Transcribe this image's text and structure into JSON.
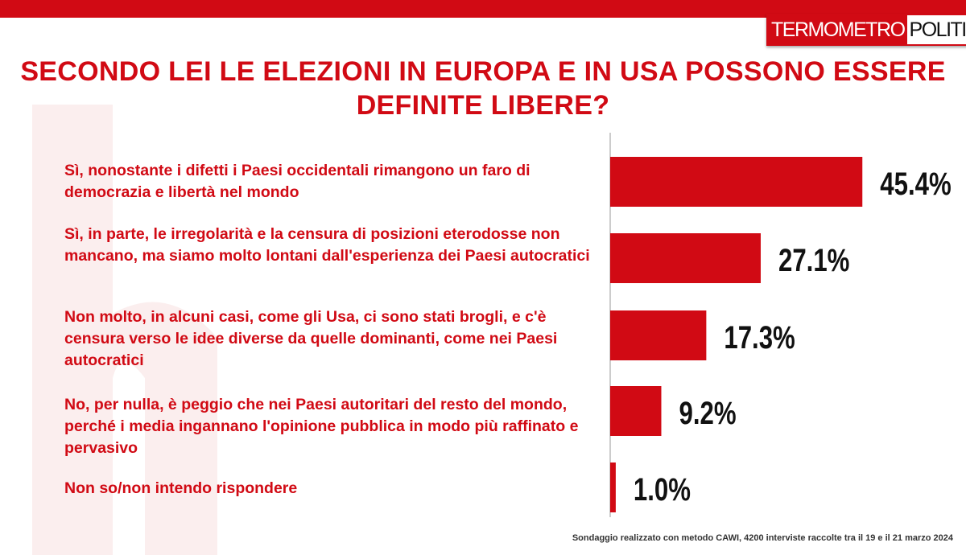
{
  "brand": {
    "part1": "TERMOMETRO",
    "part2": "POLITICO",
    "accent": "#d10a14"
  },
  "chart_data": {
    "type": "bar",
    "orientation": "horizontal",
    "title": "SECONDO LEI LE ELEZIONI IN EUROPA E IN USA POSSONO ESSERE DEFINITE LIBERE?",
    "categories": [
      "Sì, nonostante i difetti i Paesi occidentali rimangono un faro di democrazia e libertà nel mondo",
      "Sì, in parte, le irregolarità e la censura di posizioni eterodosse non mancano, ma siamo molto lontani dall'esperienza dei Paesi autocratici",
      "Non molto, in alcuni casi, come gli Usa, ci sono stati brogli, e c'è censura verso le idee diverse da quelle dominanti, come nei Paesi autocratici",
      "No, per nulla, è peggio che nei Paesi autoritari del resto del mondo, perché i media ingannano l'opinione pubblica in modo più raffinato e pervasivo",
      "Non so/non intendo rispondere"
    ],
    "values": [
      45.4,
      27.1,
      17.3,
      9.2,
      1.0
    ],
    "labels": [
      "45.4%",
      "27.1%",
      "17.3%",
      "9.2%",
      "1.0%"
    ],
    "unit": "%",
    "bar_color": "#d10a14"
  },
  "footer": "Sondaggio realizzato con metodo CAWI, 4200 interviste raccolte tra il 19 e il 21 marzo 2024"
}
